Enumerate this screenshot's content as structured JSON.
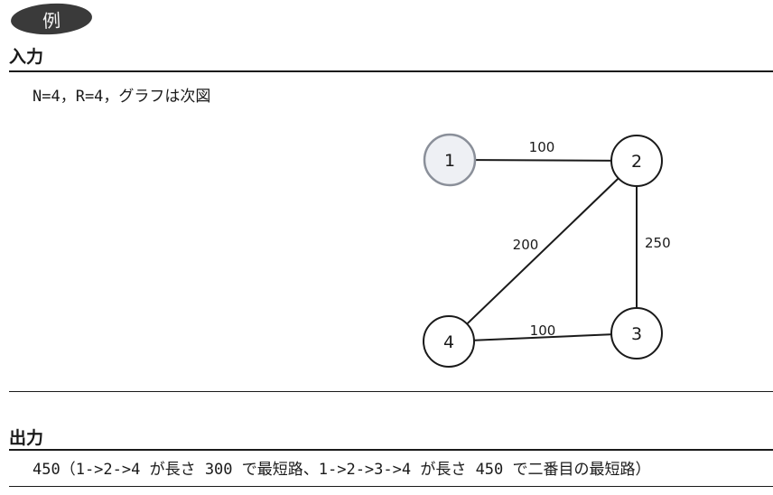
{
  "badge": {
    "label": "例"
  },
  "input_section": {
    "heading": "入力",
    "params_text": "N=4，R=4，グラフは次図"
  },
  "graph": {
    "nodes": [
      {
        "id": "1",
        "label": "1",
        "highlighted": true
      },
      {
        "id": "2",
        "label": "2",
        "highlighted": false
      },
      {
        "id": "3",
        "label": "3",
        "highlighted": false
      },
      {
        "id": "4",
        "label": "4",
        "highlighted": false
      }
    ],
    "edges": [
      {
        "from": "1",
        "to": "2",
        "weight": "100"
      },
      {
        "from": "2",
        "to": "4",
        "weight": "200"
      },
      {
        "from": "2",
        "to": "3",
        "weight": "250"
      },
      {
        "from": "4",
        "to": "3",
        "weight": "100"
      }
    ],
    "colors": {
      "highlight_stroke": "#8a8f99",
      "highlight_fill": "#eef0f4",
      "node_stroke": "#1a1a1a"
    }
  },
  "output_section": {
    "heading": "出力",
    "result_text": "450（1->2->4 が長さ 300 で最短路、1->2->3->4 が長さ 450 で二番目の最短路）"
  }
}
